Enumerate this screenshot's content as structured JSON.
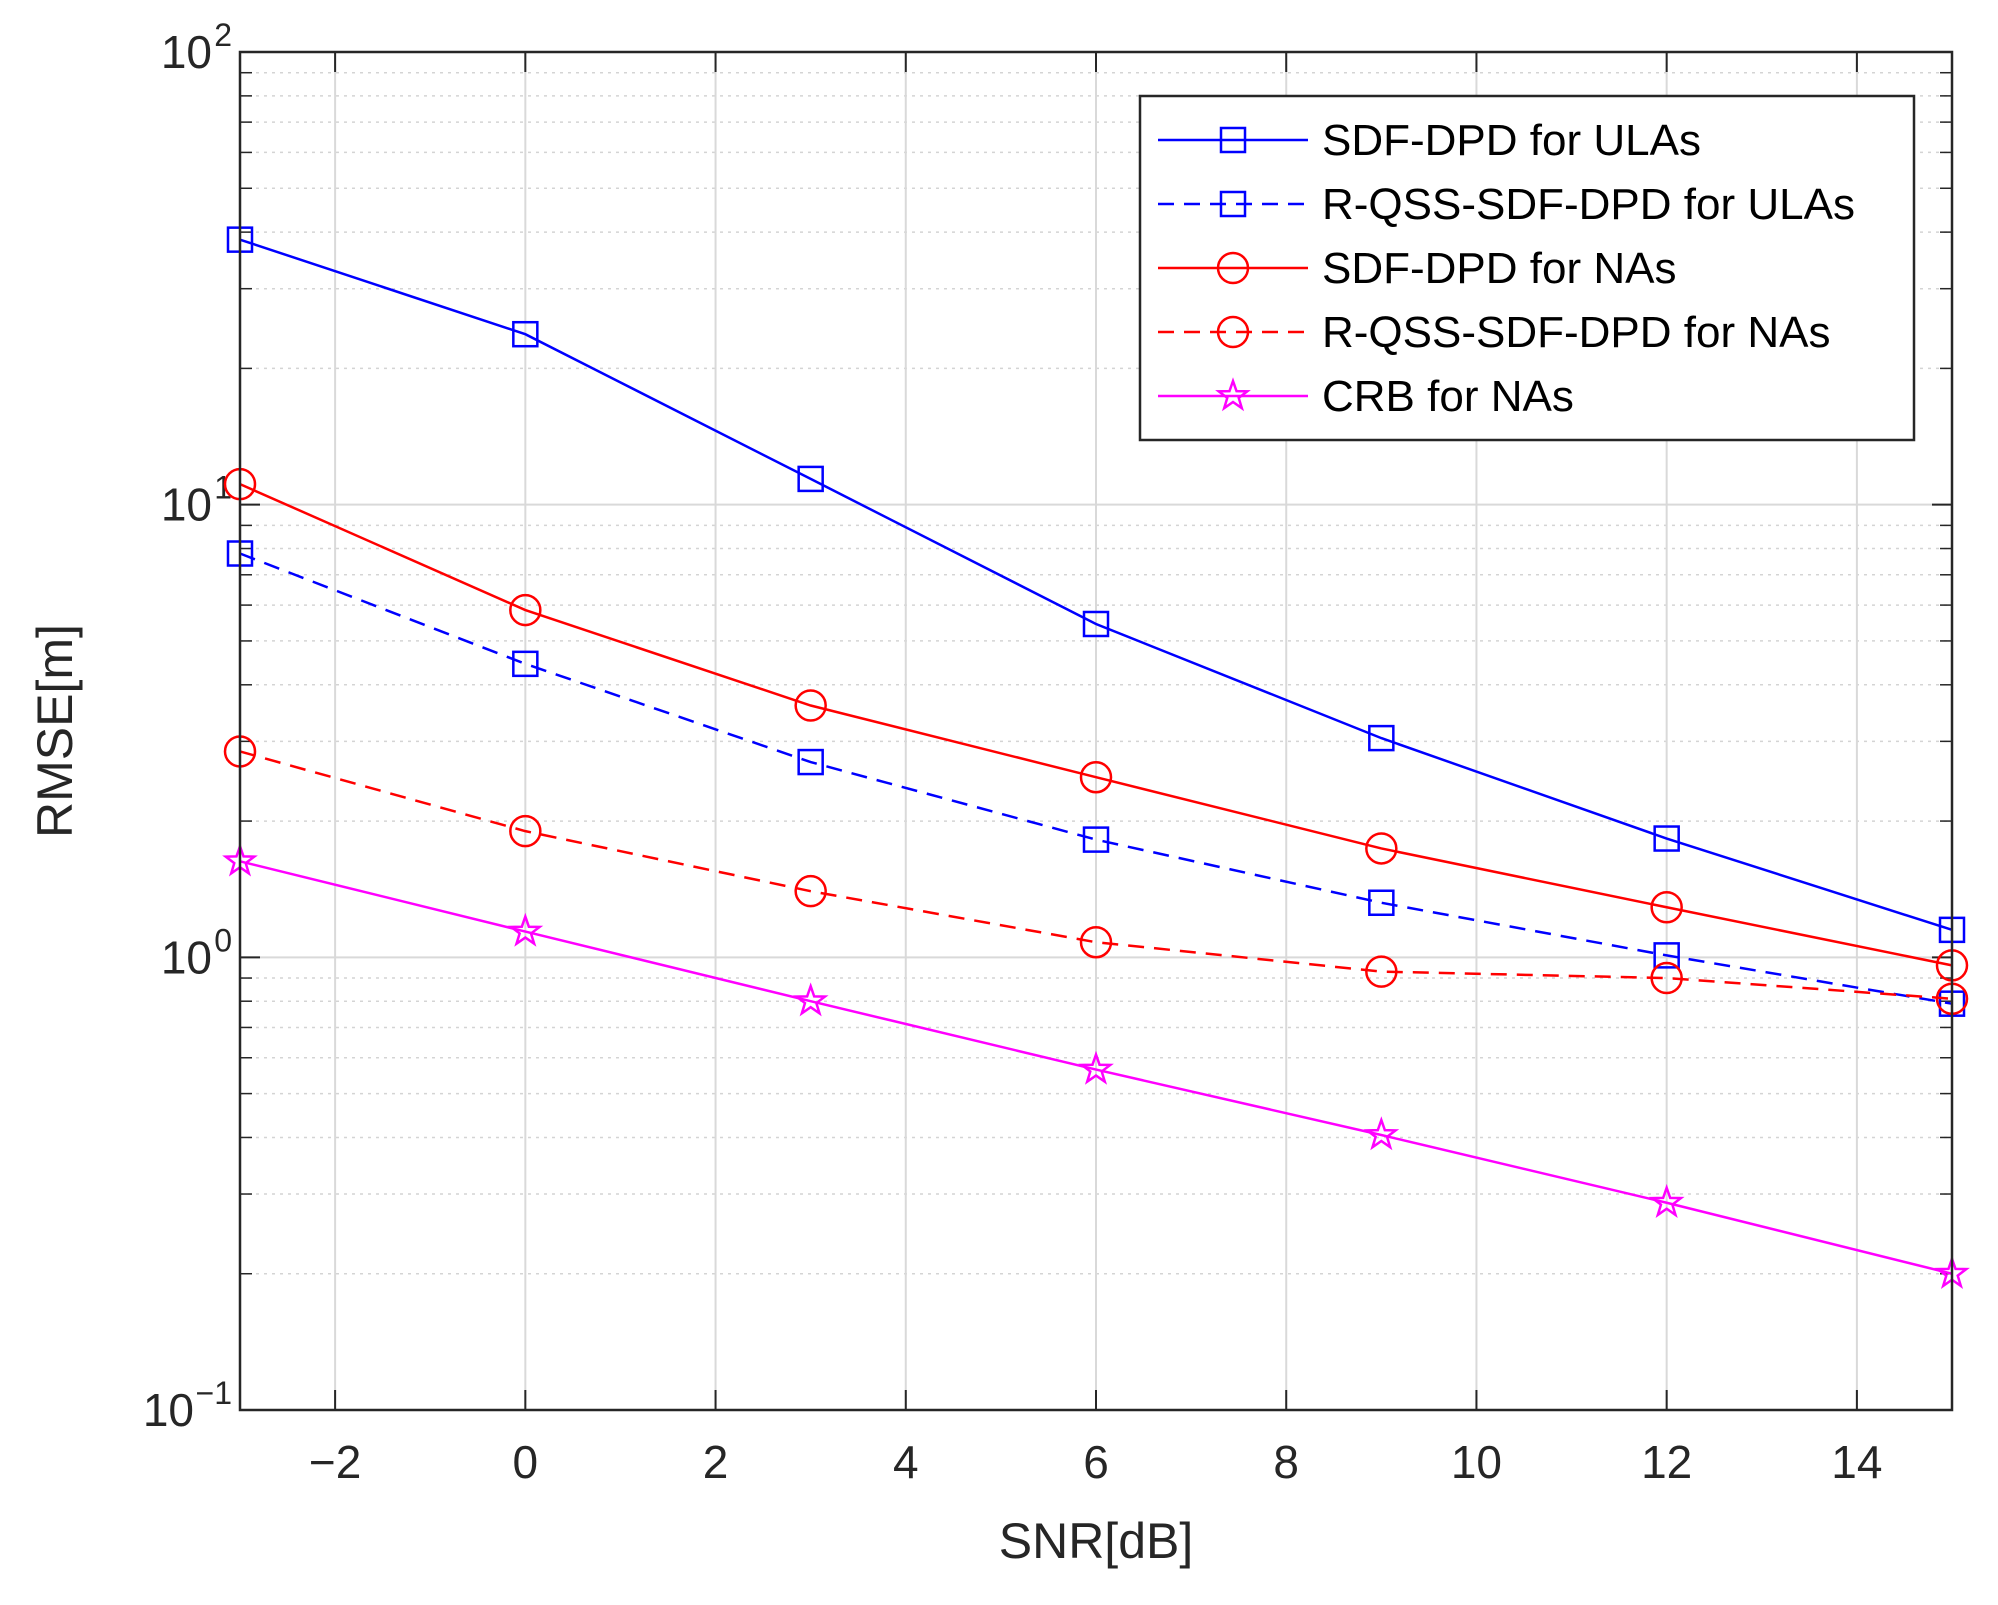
{
  "chart_data": {
    "type": "line",
    "title": "",
    "xlabel": "SNR[dB]",
    "ylabel": "RMSE[m]",
    "xscale": "linear",
    "yscale": "log",
    "xlim": [
      -3,
      15
    ],
    "ylim": [
      0.1,
      100
    ],
    "grid": true,
    "minor_grid": true,
    "legend_position": "top-right",
    "x": [
      -3,
      0,
      3,
      6,
      9,
      12,
      15
    ],
    "xticks": [
      {
        "value": -2,
        "label": "−2"
      },
      {
        "value": 0,
        "label": "0"
      },
      {
        "value": 2,
        "label": "2"
      },
      {
        "value": 4,
        "label": "4"
      },
      {
        "value": 6,
        "label": "6"
      },
      {
        "value": 8,
        "label": "8"
      },
      {
        "value": 10,
        "label": "10"
      },
      {
        "value": 12,
        "label": "12"
      },
      {
        "value": 14,
        "label": "14"
      }
    ],
    "yticks": [
      {
        "value": 0.1,
        "base": "10",
        "exp": "−1"
      },
      {
        "value": 1,
        "base": "10",
        "exp": "0"
      },
      {
        "value": 10,
        "base": "10",
        "exp": "1"
      },
      {
        "value": 100,
        "base": "10",
        "exp": "2"
      }
    ],
    "series": [
      {
        "name": "SDF-DPD for ULAs",
        "color": "#0000ff",
        "dash": "solid",
        "marker": "square",
        "values": [
          38.5,
          23.8,
          11.4,
          5.45,
          3.05,
          1.83,
          1.15
        ]
      },
      {
        "name": "R-QSS-SDF-DPD for ULAs",
        "color": "#0000ff",
        "dash": "dashed",
        "marker": "square",
        "values": [
          7.8,
          4.45,
          2.7,
          1.82,
          1.32,
          1.01,
          0.79
        ]
      },
      {
        "name": "SDF-DPD for NAs",
        "color": "#ff0000",
        "dash": "solid",
        "marker": "circle",
        "values": [
          11.1,
          5.85,
          3.6,
          2.5,
          1.74,
          1.29,
          0.96
        ]
      },
      {
        "name": "R-QSS-SDF-DPD for NAs",
        "color": "#ff0000",
        "dash": "dashed",
        "marker": "circle",
        "values": [
          2.85,
          1.9,
          1.4,
          1.08,
          0.93,
          0.9,
          0.81
        ]
      },
      {
        "name": "CRB for NAs",
        "color": "#ff00ff",
        "dash": "solid",
        "marker": "star",
        "values": [
          1.63,
          1.14,
          0.8,
          0.565,
          0.405,
          0.287,
          0.2
        ]
      }
    ]
  }
}
